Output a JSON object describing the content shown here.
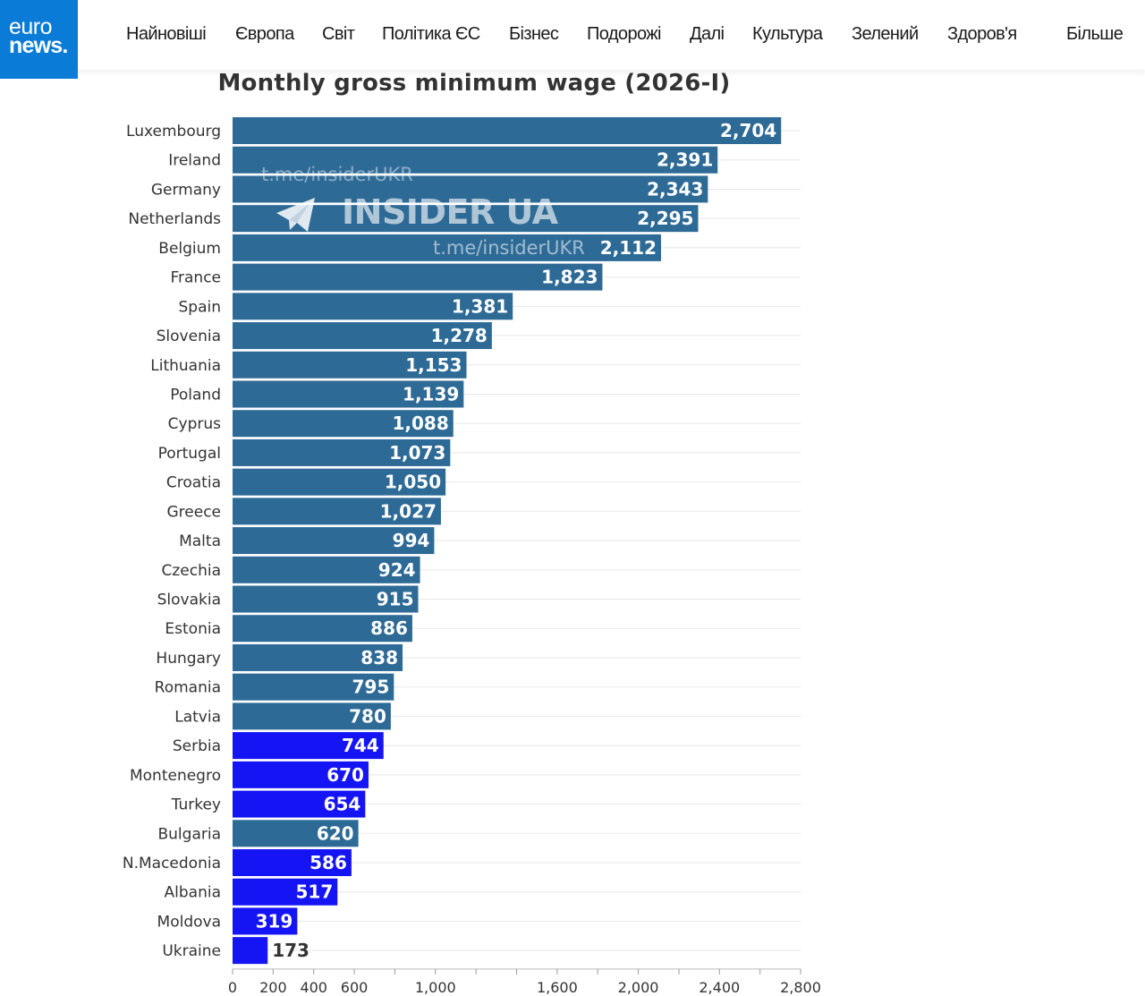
{
  "header": {
    "logo_line1": "euro",
    "logo_line2": "news.",
    "nav": [
      "Найновіші",
      "Європа",
      "Світ",
      "Політика ЄС",
      "Бізнес",
      "Подорожі",
      "Далі",
      "Культура",
      "Зелений",
      "Здоров'я",
      "Більше"
    ],
    "colors": {
      "logo_bg": "#0a7bd6"
    }
  },
  "watermark": {
    "link_top": "t.me/insiderUKR",
    "brand": "INSIDER UA",
    "link_bottom": "t.me/insiderUKR",
    "icon": "telegram-icon"
  },
  "chart_data": {
    "type": "bar",
    "orientation": "horizontal",
    "title": "Monthly gross minimum wage (2026-I)",
    "xlabel": "",
    "ylabel": "",
    "xlim": [
      0,
      2800
    ],
    "x_ticks": [
      0,
      200,
      400,
      600,
      1000,
      1600,
      2000,
      2400,
      2800
    ],
    "x_tick_labels": [
      "0",
      "200",
      "400",
      "600",
      "1,000",
      "1,600",
      "2,000",
      "2,400",
      "2,800"
    ],
    "grid": true,
    "colors": {
      "eu": "#2e6a96",
      "candidate": "#1414f5"
    },
    "bars": [
      {
        "country": "Luxembourg",
        "value": 2704,
        "label": "2,704",
        "group": "eu"
      },
      {
        "country": "Ireland",
        "value": 2391,
        "label": "2,391",
        "group": "eu"
      },
      {
        "country": "Germany",
        "value": 2343,
        "label": "2,343",
        "group": "eu"
      },
      {
        "country": "Netherlands",
        "value": 2295,
        "label": "2,295",
        "group": "eu"
      },
      {
        "country": "Belgium",
        "value": 2112,
        "label": "2,112",
        "group": "eu"
      },
      {
        "country": "France",
        "value": 1823,
        "label": "1,823",
        "group": "eu"
      },
      {
        "country": "Spain",
        "value": 1381,
        "label": "1,381",
        "group": "eu"
      },
      {
        "country": "Slovenia",
        "value": 1278,
        "label": "1,278",
        "group": "eu"
      },
      {
        "country": "Lithuania",
        "value": 1153,
        "label": "1,153",
        "group": "eu"
      },
      {
        "country": "Poland",
        "value": 1139,
        "label": "1,139",
        "group": "eu"
      },
      {
        "country": "Cyprus",
        "value": 1088,
        "label": "1,088",
        "group": "eu"
      },
      {
        "country": "Portugal",
        "value": 1073,
        "label": "1,073",
        "group": "eu"
      },
      {
        "country": "Croatia",
        "value": 1050,
        "label": "1,050",
        "group": "eu"
      },
      {
        "country": "Greece",
        "value": 1027,
        "label": "1,027",
        "group": "eu"
      },
      {
        "country": "Malta",
        "value": 994,
        "label": "994",
        "group": "eu"
      },
      {
        "country": "Czechia",
        "value": 924,
        "label": "924",
        "group": "eu"
      },
      {
        "country": "Slovakia",
        "value": 915,
        "label": "915",
        "group": "eu"
      },
      {
        "country": "Estonia",
        "value": 886,
        "label": "886",
        "group": "eu"
      },
      {
        "country": "Hungary",
        "value": 838,
        "label": "838",
        "group": "eu"
      },
      {
        "country": "Romania",
        "value": 795,
        "label": "795",
        "group": "eu"
      },
      {
        "country": "Latvia",
        "value": 780,
        "label": "780",
        "group": "eu"
      },
      {
        "country": "Serbia",
        "value": 744,
        "label": "744",
        "group": "candidate"
      },
      {
        "country": "Montenegro",
        "value": 670,
        "label": "670",
        "group": "candidate"
      },
      {
        "country": "Turkey",
        "value": 654,
        "label": "654",
        "group": "candidate"
      },
      {
        "country": "Bulgaria",
        "value": 620,
        "label": "620",
        "group": "eu"
      },
      {
        "country": "N.Macedonia",
        "value": 586,
        "label": "586",
        "group": "candidate"
      },
      {
        "country": "Albania",
        "value": 517,
        "label": "517",
        "group": "candidate"
      },
      {
        "country": "Moldova",
        "value": 319,
        "label": "319",
        "group": "candidate"
      },
      {
        "country": "Ukraine",
        "value": 173,
        "label": "173",
        "group": "candidate"
      }
    ]
  }
}
